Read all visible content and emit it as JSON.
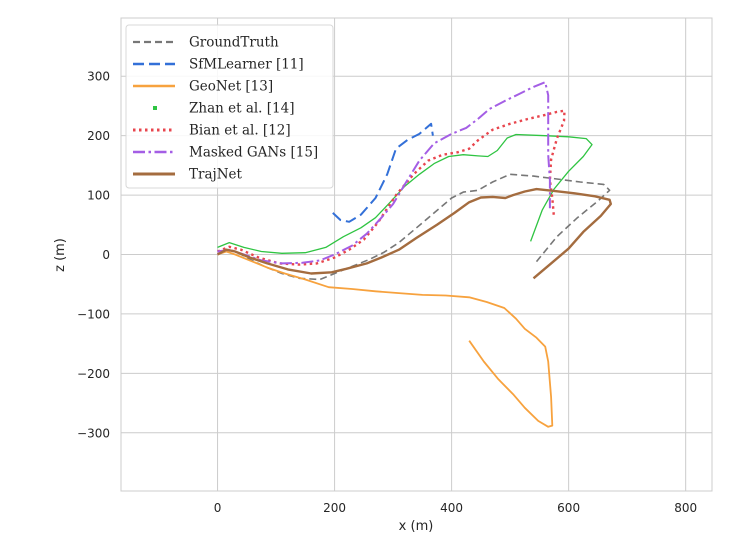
{
  "chart_data": {
    "type": "line",
    "title": "",
    "xlabel": "x (m)",
    "ylabel": "z (m)",
    "xlim": [
      -165,
      845
    ],
    "ylim": [
      -398,
      398
    ],
    "xticks": [
      0,
      200,
      400,
      600,
      800
    ],
    "yticks": [
      -300,
      -200,
      -100,
      0,
      100,
      200,
      300
    ],
    "xtick_labels": [
      "0",
      "200",
      "400",
      "600",
      "800"
    ],
    "ytick_labels": [
      "−300",
      "−200",
      "−100",
      "0",
      "100",
      "200",
      "300"
    ],
    "grid": true,
    "legend_position": "upper-left",
    "series": [
      {
        "name": "GroundTruth",
        "color": "#777777",
        "dash": "7,4",
        "width": 1.6,
        "points": [
          [
            0,
            0
          ],
          [
            15,
            8
          ],
          [
            30,
            6
          ],
          [
            55,
            -8
          ],
          [
            80,
            -20
          ],
          [
            110,
            -32
          ],
          [
            140,
            -40
          ],
          [
            175,
            -42
          ],
          [
            200,
            -32
          ],
          [
            230,
            -20
          ],
          [
            260,
            -8
          ],
          [
            285,
            4
          ],
          [
            310,
            20
          ],
          [
            340,
            45
          ],
          [
            370,
            70
          ],
          [
            400,
            95
          ],
          [
            420,
            105
          ],
          [
            445,
            108
          ],
          [
            470,
            122
          ],
          [
            500,
            135
          ],
          [
            540,
            132
          ],
          [
            580,
            127
          ],
          [
            620,
            122
          ],
          [
            660,
            118
          ],
          [
            670,
            108
          ],
          [
            650,
            90
          ],
          [
            615,
            62
          ],
          [
            580,
            30
          ],
          [
            545,
            -12
          ]
        ]
      },
      {
        "name": "SfMLearner [11]",
        "color": "#3370d8",
        "dash": "11,5",
        "width": 2.0,
        "points": [
          [
            197,
            70
          ],
          [
            210,
            58
          ],
          [
            225,
            55
          ],
          [
            245,
            67
          ],
          [
            270,
            95
          ],
          [
            290,
            135
          ],
          [
            305,
            178
          ],
          [
            325,
            193
          ],
          [
            345,
            203
          ],
          [
            365,
            220
          ],
          [
            368,
            200
          ]
        ]
      },
      {
        "name": "GeoNet [13]",
        "color": "#f7a23e",
        "dash": "",
        "width": 1.8,
        "points": [
          [
            0,
            0
          ],
          [
            15,
            5
          ],
          [
            30,
            0
          ],
          [
            55,
            -10
          ],
          [
            85,
            -22
          ],
          [
            115,
            -32
          ],
          [
            150,
            -42
          ],
          [
            190,
            -55
          ],
          [
            230,
            -58
          ],
          [
            270,
            -62
          ],
          [
            310,
            -65
          ],
          [
            350,
            -68
          ],
          [
            390,
            -69
          ],
          [
            430,
            -72
          ],
          [
            460,
            -80
          ],
          [
            490,
            -90
          ],
          [
            510,
            -108
          ],
          [
            525,
            -125
          ],
          [
            545,
            -140
          ],
          [
            560,
            -155
          ],
          [
            565,
            -180
          ],
          [
            570,
            -240
          ],
          [
            572,
            -288
          ],
          [
            565,
            -290
          ],
          [
            548,
            -280
          ],
          [
            525,
            -258
          ],
          [
            505,
            -235
          ],
          [
            480,
            -210
          ],
          [
            455,
            -180
          ],
          [
            430,
            -145
          ]
        ]
      },
      {
        "name": "Zhan et al. [14]",
        "color": "#2fc442",
        "dash": "",
        "width": 1.3,
        "points": [
          [
            0,
            12
          ],
          [
            20,
            20
          ],
          [
            45,
            12
          ],
          [
            75,
            5
          ],
          [
            110,
            2
          ],
          [
            150,
            3
          ],
          [
            185,
            12
          ],
          [
            215,
            30
          ],
          [
            245,
            45
          ],
          [
            270,
            62
          ],
          [
            295,
            88
          ],
          [
            320,
            115
          ],
          [
            345,
            135
          ],
          [
            370,
            153
          ],
          [
            395,
            165
          ],
          [
            420,
            168
          ],
          [
            445,
            166
          ],
          [
            462,
            165
          ],
          [
            478,
            175
          ],
          [
            495,
            196
          ],
          [
            510,
            202
          ],
          [
            560,
            200
          ],
          [
            600,
            198
          ],
          [
            630,
            195
          ],
          [
            640,
            185
          ],
          [
            625,
            165
          ],
          [
            600,
            140
          ],
          [
            575,
            110
          ],
          [
            555,
            75
          ],
          [
            535,
            22
          ]
        ]
      },
      {
        "name": "Bian et al. [12]",
        "color": "#e8464e",
        "dash": "2.5,3.5",
        "width": 2.4,
        "points": [
          [
            0,
            5
          ],
          [
            20,
            13
          ],
          [
            40,
            8
          ],
          [
            70,
            -5
          ],
          [
            105,
            -15
          ],
          [
            140,
            -17
          ],
          [
            170,
            -15
          ],
          [
            200,
            -5
          ],
          [
            225,
            8
          ],
          [
            250,
            25
          ],
          [
            275,
            55
          ],
          [
            305,
            100
          ],
          [
            335,
            135
          ],
          [
            360,
            158
          ],
          [
            385,
            168
          ],
          [
            410,
            172
          ],
          [
            430,
            178
          ],
          [
            445,
            192
          ],
          [
            470,
            210
          ],
          [
            500,
            220
          ],
          [
            530,
            228
          ],
          [
            560,
            235
          ],
          [
            580,
            240
          ],
          [
            593,
            242
          ],
          [
            592,
            225
          ],
          [
            580,
            195
          ],
          [
            570,
            160
          ],
          [
            568,
            125
          ],
          [
            572,
            95
          ],
          [
            575,
            62
          ]
        ]
      },
      {
        "name": "Masked GANs [15]",
        "color": "#a45ee5",
        "dash": "12,3.5,2.5,3.5",
        "width": 2.0,
        "points": [
          [
            0,
            5
          ],
          [
            20,
            8
          ],
          [
            45,
            0
          ],
          [
            75,
            -10
          ],
          [
            110,
            -15
          ],
          [
            145,
            -14
          ],
          [
            175,
            -10
          ],
          [
            200,
            0
          ],
          [
            230,
            15
          ],
          [
            255,
            35
          ],
          [
            280,
            62
          ],
          [
            300,
            85
          ],
          [
            320,
            118
          ],
          [
            345,
            158
          ],
          [
            370,
            187
          ],
          [
            400,
            203
          ],
          [
            425,
            213
          ],
          [
            445,
            228
          ],
          [
            465,
            245
          ],
          [
            490,
            258
          ],
          [
            515,
            270
          ],
          [
            540,
            282
          ],
          [
            560,
            290
          ],
          [
            565,
            268
          ],
          [
            565,
            218
          ],
          [
            565,
            168
          ],
          [
            568,
            125
          ],
          [
            568,
            98
          ],
          [
            568,
            78
          ]
        ]
      },
      {
        "name": "TrajNet",
        "color": "#a46c3f",
        "dash": "",
        "width": 2.4,
        "points": [
          [
            0,
            0
          ],
          [
            15,
            8
          ],
          [
            30,
            5
          ],
          [
            55,
            -5
          ],
          [
            85,
            -15
          ],
          [
            120,
            -25
          ],
          [
            160,
            -32
          ],
          [
            195,
            -30
          ],
          [
            220,
            -24
          ],
          [
            255,
            -15
          ],
          [
            280,
            -5
          ],
          [
            310,
            8
          ],
          [
            340,
            28
          ],
          [
            375,
            50
          ],
          [
            405,
            70
          ],
          [
            430,
            88
          ],
          [
            450,
            96
          ],
          [
            470,
            97
          ],
          [
            492,
            95
          ],
          [
            505,
            100
          ],
          [
            525,
            106
          ],
          [
            545,
            110
          ],
          [
            575,
            107
          ],
          [
            610,
            103
          ],
          [
            645,
            98
          ],
          [
            670,
            92
          ],
          [
            672,
            85
          ],
          [
            655,
            65
          ],
          [
            625,
            38
          ],
          [
            600,
            10
          ],
          [
            570,
            -15
          ],
          [
            540,
            -40
          ]
        ]
      }
    ]
  }
}
